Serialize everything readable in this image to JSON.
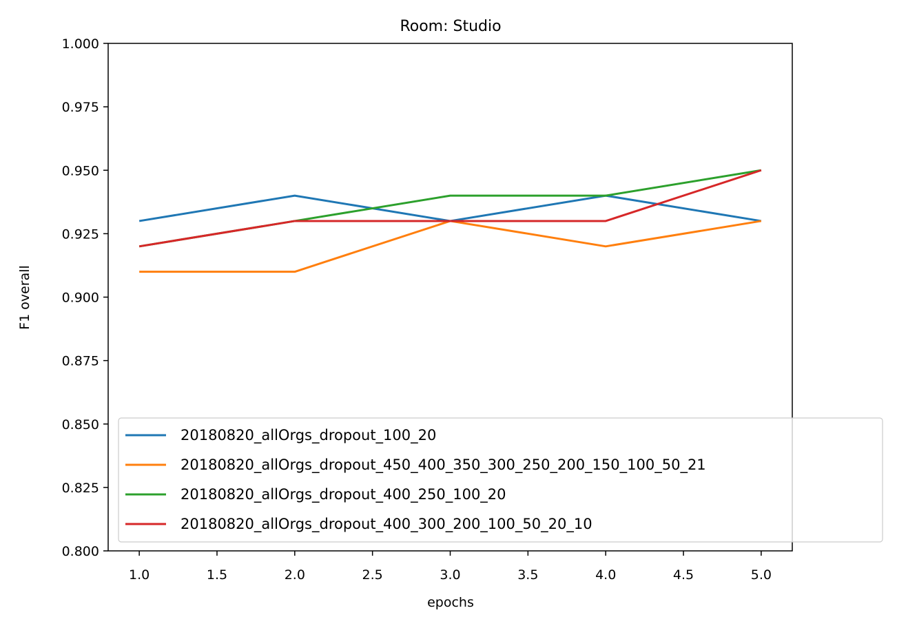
{
  "chart_data": {
    "type": "line",
    "title": "Room: Studio",
    "xlabel": "epochs",
    "ylabel": "F1 overall",
    "xlim": [
      0.8,
      5.2
    ],
    "ylim": [
      0.8,
      1.0
    ],
    "xticks": [
      1.0,
      1.5,
      2.0,
      2.5,
      3.0,
      3.5,
      4.0,
      4.5,
      5.0
    ],
    "xtick_labels": [
      "1.0",
      "1.5",
      "2.0",
      "2.5",
      "3.0",
      "3.5",
      "4.0",
      "4.5",
      "5.0"
    ],
    "yticks": [
      0.8,
      0.825,
      0.85,
      0.875,
      0.9,
      0.925,
      0.95,
      0.975,
      1.0
    ],
    "ytick_labels": [
      "0.800",
      "0.825",
      "0.850",
      "0.875",
      "0.900",
      "0.925",
      "0.950",
      "0.975",
      "1.000"
    ],
    "grid": false,
    "legend_position": "lower-left",
    "x": [
      1,
      2,
      3,
      4,
      5
    ],
    "series": [
      {
        "name": "20180820_allOrgs_dropout_100_20",
        "color": "#1f77b4",
        "values": [
          0.93,
          0.94,
          0.93,
          0.94,
          0.93
        ]
      },
      {
        "name": "20180820_allOrgs_dropout_450_400_350_300_250_200_150_100_50_21",
        "color": "#ff7f0e",
        "values": [
          0.91,
          0.91,
          0.93,
          0.92,
          0.93
        ]
      },
      {
        "name": "20180820_allOrgs_dropout_400_250_100_20",
        "color": "#2ca02c",
        "values": [
          0.92,
          0.93,
          0.94,
          0.94,
          0.95
        ]
      },
      {
        "name": "20180820_allOrgs_dropout_400_300_200_100_50_20_10",
        "color": "#d62728",
        "values": [
          0.92,
          0.93,
          0.93,
          0.93,
          0.95
        ]
      }
    ]
  }
}
